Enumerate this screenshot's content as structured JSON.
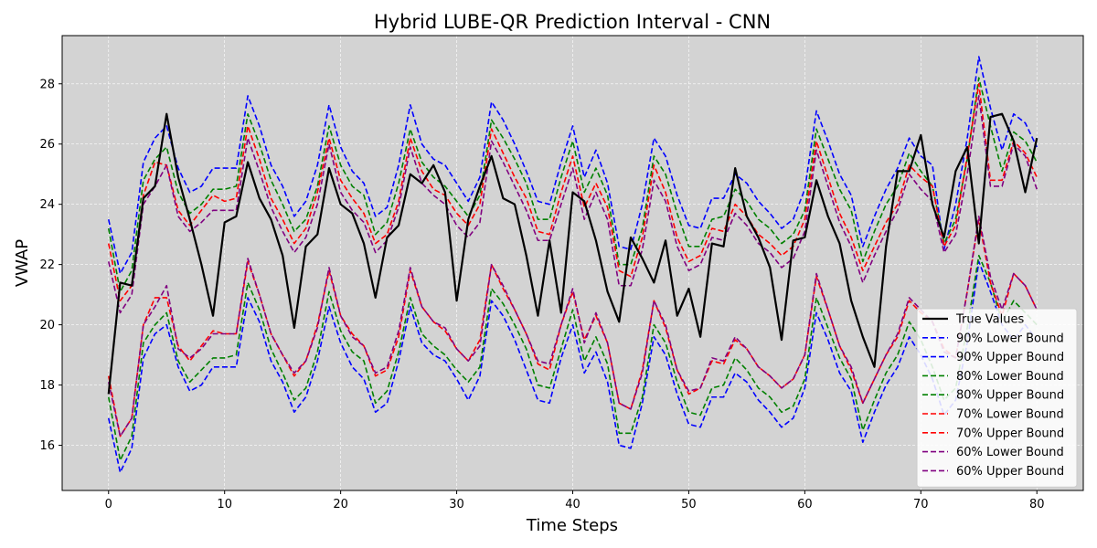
{
  "chart_data": {
    "type": "line",
    "title": "Hybrid LUBE-QR Prediction Interval - CNN",
    "xlabel": "Time Steps",
    "ylabel": "VWAP",
    "xlim": [
      -4,
      84
    ],
    "ylim": [
      14.5,
      29.6
    ],
    "xticks": [
      0,
      10,
      20,
      30,
      40,
      50,
      60,
      70,
      80
    ],
    "yticks": [
      16,
      18,
      20,
      22,
      24,
      26,
      28
    ],
    "grid": true,
    "legend_position": "lower-right",
    "background": "#d3d3d3",
    "x": [
      0,
      1,
      2,
      3,
      4,
      5,
      6,
      7,
      8,
      9,
      10,
      11,
      12,
      13,
      14,
      15,
      16,
      17,
      18,
      19,
      20,
      21,
      22,
      23,
      24,
      25,
      26,
      27,
      28,
      29,
      30,
      31,
      32,
      33,
      34,
      35,
      36,
      37,
      38,
      39,
      40,
      41,
      42,
      43,
      44,
      45,
      46,
      47,
      48,
      49,
      50,
      51,
      52,
      53,
      54,
      55,
      56,
      57,
      58,
      59,
      60,
      61,
      62,
      63,
      64,
      65,
      66,
      67,
      68,
      69,
      70,
      71,
      72,
      73,
      74,
      75,
      76,
      77,
      78,
      79,
      80
    ],
    "series": [
      {
        "name": "True Values",
        "color": "#000000",
        "dashed": false,
        "width": 2.2,
        "values": [
          17.7,
          21.4,
          21.3,
          24.2,
          24.6,
          27.0,
          24.9,
          23.5,
          22.0,
          20.3,
          23.4,
          23.6,
          25.4,
          24.2,
          23.5,
          22.3,
          19.9,
          22.6,
          23.0,
          25.2,
          24.0,
          23.7,
          22.7,
          20.9,
          22.9,
          23.3,
          25.0,
          24.7,
          25.3,
          24.4,
          20.8,
          23.5,
          24.6,
          25.6,
          24.2,
          24.0,
          22.3,
          20.3,
          22.8,
          20.4,
          24.4,
          24.1,
          22.8,
          21.1,
          20.1,
          22.9,
          22.2,
          21.4,
          22.8,
          20.3,
          21.2,
          19.6,
          22.7,
          22.6,
          25.2,
          23.6,
          22.9,
          21.9,
          19.5,
          22.8,
          22.9,
          24.8,
          23.6,
          22.7,
          20.8,
          19.6,
          18.6,
          22.6,
          25.1,
          25.1,
          26.3,
          24.0,
          22.9,
          25.1,
          25.9,
          22.7,
          26.9,
          27.0,
          26.1,
          24.4,
          26.2
        ]
      },
      {
        "name": "90% Lower Bound",
        "color": "#0000ff",
        "dashed": true,
        "width": 1.6,
        "values": [
          16.9,
          15.1,
          15.9,
          18.9,
          19.7,
          20.0,
          18.6,
          17.8,
          18.0,
          18.6,
          18.6,
          18.6,
          20.9,
          20.1,
          18.8,
          18.1,
          17.1,
          17.6,
          18.8,
          20.6,
          19.4,
          18.6,
          18.2,
          17.1,
          17.4,
          18.8,
          20.6,
          19.4,
          19.0,
          18.8,
          18.2,
          17.5,
          18.3,
          20.8,
          20.3,
          19.5,
          18.5,
          17.5,
          17.4,
          18.9,
          20.0,
          18.4,
          19.1,
          18.1,
          16.0,
          15.9,
          17.4,
          19.6,
          19.0,
          17.7,
          16.7,
          16.6,
          17.6,
          17.6,
          18.4,
          18.1,
          17.5,
          17.1,
          16.6,
          16.9,
          17.9,
          20.4,
          19.5,
          18.4,
          17.8,
          16.1,
          17.1,
          18.0,
          18.6,
          19.6,
          19.0,
          18.2,
          17.0,
          17.5,
          19.4,
          22.1,
          21.1,
          20.0,
          19.5,
          20.0,
          19.5
        ]
      },
      {
        "name": "90% Upper Bound",
        "color": "#0000ff",
        "dashed": true,
        "width": 1.6,
        "values": [
          23.5,
          21.7,
          22.4,
          25.4,
          26.2,
          26.6,
          25.2,
          24.4,
          24.6,
          25.2,
          25.2,
          25.2,
          27.6,
          26.6,
          25.3,
          24.6,
          23.6,
          24.1,
          25.3,
          27.3,
          25.9,
          25.1,
          24.7,
          23.6,
          23.9,
          25.3,
          27.3,
          26.0,
          25.5,
          25.3,
          24.7,
          24.1,
          24.9,
          27.4,
          26.8,
          26.0,
          25.1,
          24.1,
          24.0,
          25.4,
          26.6,
          24.9,
          25.8,
          24.7,
          22.6,
          22.5,
          24.0,
          26.2,
          25.6,
          24.3,
          23.3,
          23.2,
          24.2,
          24.2,
          25.0,
          24.7,
          24.1,
          23.7,
          23.2,
          23.5,
          24.5,
          27.1,
          26.1,
          25.0,
          24.3,
          22.6,
          23.6,
          24.5,
          25.2,
          26.2,
          25.6,
          25.3,
          22.5,
          24.0,
          26.2,
          28.9,
          27.2,
          25.8,
          27.0,
          26.7,
          25.9
        ]
      },
      {
        "name": "80% Lower Bound",
        "color": "#008000",
        "dashed": true,
        "width": 1.6,
        "values": [
          17.6,
          15.5,
          16.3,
          19.4,
          20.0,
          20.4,
          18.8,
          18.1,
          18.5,
          18.9,
          18.9,
          19.0,
          21.4,
          20.5,
          19.2,
          18.4,
          17.5,
          17.9,
          19.1,
          21.1,
          19.8,
          19.1,
          18.8,
          17.4,
          17.8,
          19.1,
          20.9,
          19.7,
          19.3,
          19.0,
          18.5,
          18.1,
          18.6,
          21.2,
          20.7,
          20.0,
          19.2,
          18.0,
          17.9,
          19.2,
          20.5,
          18.8,
          19.6,
          18.7,
          16.4,
          16.4,
          17.6,
          20.0,
          19.4,
          18.1,
          17.1,
          17.0,
          17.9,
          18.0,
          18.9,
          18.5,
          17.9,
          17.6,
          17.1,
          17.3,
          18.2,
          20.9,
          19.9,
          18.9,
          18.2,
          16.5,
          17.5,
          18.4,
          19.0,
          20.1,
          19.5,
          18.6,
          17.5,
          17.9,
          19.9,
          22.3,
          21.4,
          20.1,
          20.8,
          20.4,
          20.0
        ]
      },
      {
        "name": "80% Upper Bound",
        "color": "#008000",
        "dashed": true,
        "width": 1.6,
        "values": [
          23.2,
          21.1,
          21.8,
          24.8,
          25.5,
          25.9,
          24.4,
          23.7,
          24.0,
          24.5,
          24.5,
          24.6,
          27.0,
          26.0,
          24.8,
          24.0,
          23.1,
          23.5,
          24.6,
          26.6,
          25.3,
          24.6,
          24.3,
          23.0,
          23.4,
          24.7,
          26.5,
          25.4,
          24.9,
          24.6,
          24.1,
          23.6,
          24.3,
          26.8,
          26.2,
          25.5,
          24.7,
          23.5,
          23.5,
          24.9,
          26.1,
          24.4,
          25.2,
          24.3,
          22.0,
          22.0,
          23.2,
          25.6,
          25.0,
          23.7,
          22.6,
          22.6,
          23.5,
          23.6,
          24.5,
          24.1,
          23.5,
          23.2,
          22.7,
          23.0,
          23.8,
          26.5,
          25.5,
          24.5,
          23.8,
          22.1,
          23.1,
          24.0,
          24.6,
          25.7,
          25.1,
          24.6,
          22.7,
          23.5,
          25.5,
          28.2,
          26.6,
          25.1,
          26.4,
          26.1,
          25.4
        ]
      },
      {
        "name": "70% Lower Bound",
        "color": "#ff0000",
        "dashed": true,
        "width": 1.6,
        "values": [
          18.3,
          16.3,
          16.9,
          20.0,
          20.9,
          20.9,
          19.3,
          18.8,
          19.3,
          19.8,
          19.7,
          19.7,
          22.1,
          21.0,
          19.7,
          19.0,
          18.3,
          18.8,
          20.0,
          21.8,
          20.3,
          19.7,
          19.3,
          18.3,
          18.5,
          19.6,
          21.8,
          20.6,
          20.1,
          19.8,
          19.2,
          18.8,
          19.5,
          22.0,
          21.2,
          20.5,
          19.7,
          18.7,
          18.5,
          20.0,
          21.1,
          19.5,
          20.3,
          19.4,
          17.4,
          17.2,
          18.5,
          20.8,
          19.9,
          18.5,
          17.7,
          17.9,
          18.8,
          18.7,
          19.5,
          19.2,
          18.6,
          18.3,
          17.9,
          18.2,
          19.0,
          21.6,
          20.5,
          19.3,
          18.5,
          17.4,
          18.2,
          19.0,
          19.6,
          20.8,
          20.4,
          20.1,
          19.2,
          18.9,
          21.1,
          23.5,
          21.4,
          20.3,
          21.7,
          21.3,
          20.5
        ]
      },
      {
        "name": "70% Upper Bound",
        "color": "#ff0000",
        "dashed": true,
        "width": 1.6,
        "values": [
          22.7,
          20.8,
          21.3,
          24.3,
          25.4,
          25.3,
          23.8,
          23.3,
          23.8,
          24.3,
          24.1,
          24.2,
          26.6,
          25.5,
          24.2,
          23.5,
          22.7,
          23.2,
          24.4,
          26.2,
          24.8,
          24.2,
          23.7,
          22.7,
          23.0,
          24.1,
          26.2,
          25.1,
          24.5,
          24.3,
          23.7,
          23.3,
          24.0,
          26.5,
          25.7,
          24.9,
          24.2,
          23.1,
          23.0,
          24.4,
          25.6,
          23.9,
          24.7,
          23.9,
          21.8,
          21.6,
          22.9,
          25.3,
          24.4,
          22.9,
          22.1,
          22.3,
          23.2,
          23.1,
          24.0,
          23.6,
          23.0,
          22.7,
          22.3,
          22.6,
          23.5,
          26.1,
          24.9,
          23.7,
          22.9,
          21.8,
          22.6,
          23.4,
          24.0,
          25.3,
          24.9,
          24.6,
          22.6,
          23.3,
          25.6,
          28.0,
          24.8,
          24.8,
          26.1,
          25.7,
          24.9
        ]
      },
      {
        "name": "60% Lower Bound",
        "color": "#800080",
        "dashed": true,
        "width": 1.6,
        "values": [
          18.1,
          16.3,
          16.9,
          20.0,
          20.6,
          21.3,
          19.2,
          18.9,
          19.2,
          19.7,
          19.7,
          19.7,
          22.2,
          21.0,
          19.7,
          19.0,
          18.4,
          18.8,
          19.9,
          21.9,
          20.3,
          19.6,
          19.3,
          18.4,
          18.6,
          19.8,
          21.9,
          20.6,
          20.1,
          19.9,
          19.2,
          18.8,
          19.3,
          22.0,
          21.3,
          20.5,
          19.7,
          18.8,
          18.7,
          20.0,
          21.2,
          19.4,
          20.4,
          19.4,
          17.4,
          17.2,
          18.4,
          20.8,
          20.0,
          18.5,
          17.8,
          17.9,
          18.9,
          18.8,
          19.6,
          19.2,
          18.6,
          18.3,
          17.9,
          18.2,
          19.0,
          21.7,
          20.5,
          19.3,
          18.6,
          17.4,
          18.2,
          19.0,
          19.7,
          20.9,
          20.5,
          20.1,
          19.1,
          18.9,
          21.1,
          23.6,
          21.6,
          20.5,
          21.7,
          21.3,
          20.5
        ]
      },
      {
        "name": "60% Upper Bound",
        "color": "#800080",
        "dashed": true,
        "width": 1.6,
        "values": [
          22.1,
          20.4,
          21.0,
          24.0,
          24.6,
          25.3,
          23.6,
          23.1,
          23.4,
          23.8,
          23.8,
          23.8,
          26.2,
          25.1,
          23.9,
          23.1,
          22.4,
          22.9,
          24.0,
          26.0,
          24.4,
          23.8,
          23.4,
          22.4,
          22.8,
          23.9,
          25.9,
          24.7,
          24.3,
          24.0,
          23.3,
          22.9,
          23.4,
          26.1,
          25.4,
          24.6,
          23.8,
          22.8,
          22.8,
          24.0,
          25.2,
          23.5,
          24.4,
          23.5,
          21.3,
          21.3,
          22.5,
          24.8,
          24.1,
          22.6,
          21.8,
          22.0,
          22.9,
          22.8,
          23.7,
          23.3,
          22.7,
          22.4,
          21.9,
          22.2,
          23.1,
          25.8,
          24.6,
          23.4,
          22.6,
          21.4,
          22.3,
          23.1,
          23.8,
          25.0,
          24.5,
          24.1,
          22.4,
          23.0,
          25.0,
          27.6,
          24.6,
          24.6,
          26.0,
          25.6,
          24.5
        ]
      }
    ]
  }
}
